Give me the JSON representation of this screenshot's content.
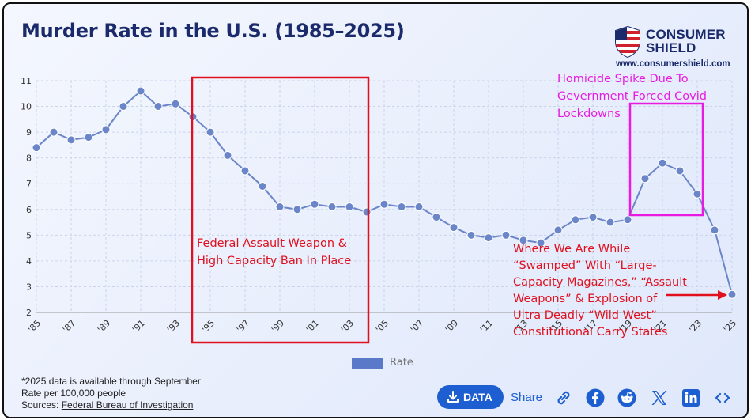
{
  "title": "Murder Rate in the U.S. (1985–2025)",
  "brand": {
    "line1": "CONSUMER",
    "line2": "SHIELD",
    "url": "www.consumershield.com"
  },
  "colors": {
    "line": "#6b86c8",
    "marker": "#6b86c8",
    "annotation_red": "#e0101f",
    "annotation_magenta": "#e81ce0",
    "title": "#1b2a6b",
    "accent": "#1d5fd1"
  },
  "chart_data": {
    "type": "line",
    "x_tick_labels": [
      "'85",
      "'87",
      "'89",
      "'91",
      "'93",
      "'95",
      "'97",
      "'99",
      "'01",
      "'03",
      "'05",
      "'07",
      "'09",
      "'11",
      "'13",
      "'15",
      "'17",
      "'19",
      "'21",
      "'23",
      "'25"
    ],
    "x": [
      1985,
      1986,
      1987,
      1988,
      1989,
      1990,
      1991,
      1992,
      1993,
      1994,
      1995,
      1996,
      1997,
      1998,
      1999,
      2000,
      2001,
      2002,
      2003,
      2004,
      2005,
      2006,
      2007,
      2008,
      2009,
      2010,
      2011,
      2012,
      2013,
      2014,
      2015,
      2016,
      2017,
      2018,
      2019,
      2020,
      2021,
      2022,
      2023,
      2024,
      2025
    ],
    "series": [
      {
        "name": "Rate",
        "values": [
          8.4,
          9.0,
          8.7,
          8.8,
          9.1,
          10.0,
          10.6,
          10.0,
          10.1,
          9.6,
          9.0,
          8.1,
          7.5,
          6.9,
          6.1,
          6.0,
          6.2,
          6.1,
          6.1,
          5.9,
          6.2,
          6.1,
          6.1,
          5.7,
          5.3,
          5.0,
          4.9,
          5.0,
          4.8,
          4.7,
          5.2,
          5.6,
          5.7,
          5.5,
          5.6,
          7.2,
          7.8,
          7.5,
          6.6,
          5.2,
          2.7
        ]
      }
    ],
    "ylim": [
      2,
      11
    ],
    "y_ticks": [
      2,
      3,
      4,
      5,
      6,
      7,
      8,
      9,
      10,
      11
    ],
    "grid": true,
    "legend": "bottom-center"
  },
  "annotations": {
    "ban": "Federal Assault Weapon & High Capacity Ban In Place",
    "covid_line1": "Homicide Spike Due To",
    "covid_line2": "Gevernment Forced Covid",
    "covid_line3": "Lockdowns",
    "now_line1": "Where We Are While",
    "now_line2": "“Swamped” With “Large-",
    "now_line3": "Capacity Magazines,” “Assault",
    "now_line4": "Weapons” & Explosion of",
    "now_line5": "Ultra Deadly “Wild West”",
    "now_line6": "Constitutional Carry States"
  },
  "footnotes": {
    "line1": "*2025 data is available through September",
    "line2": "Rate per 100,000 people",
    "sources_prefix": "Sources: ",
    "sources_link": "Federal Bureau of Investigation"
  },
  "toolbar": {
    "data_label": "DATA",
    "share_label": "Share"
  },
  "icons": [
    "download-icon",
    "link-icon",
    "facebook-icon",
    "reddit-icon",
    "x-icon",
    "linkedin-icon",
    "embed-icon"
  ]
}
